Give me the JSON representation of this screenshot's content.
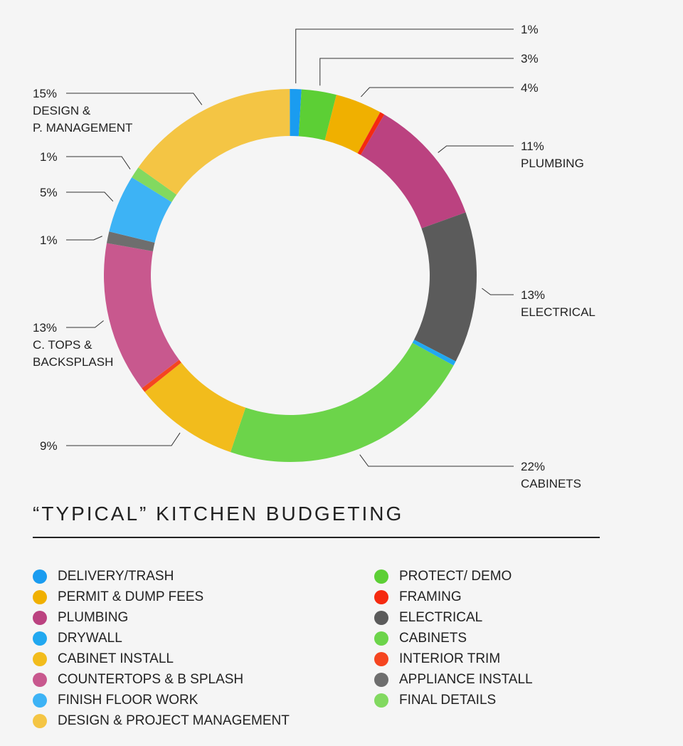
{
  "title": "“TYPICAL” KITCHEN BUDGETING",
  "chart_data": {
    "type": "pie",
    "donut": true,
    "slices": [
      {
        "name": "DELIVERY/TRASH",
        "value": 1,
        "color": "#1a9cf0"
      },
      {
        "name": "PROTECT/ DEMO",
        "value": 3,
        "color": "#5ccf35"
      },
      {
        "name": "PERMIT & DUMP FEES",
        "value": 4,
        "color": "#f0b000"
      },
      {
        "name": "FRAMING",
        "value": 0.4,
        "color": "#f52a10"
      },
      {
        "name": "PLUMBING",
        "value": 11,
        "color": "#bb4280"
      },
      {
        "name": "ELECTRICAL",
        "value": 13,
        "color": "#5b5b5b"
      },
      {
        "name": "DRYWALL",
        "value": 0.4,
        "color": "#21a8f0"
      },
      {
        "name": "CABINETS",
        "value": 22,
        "color": "#6cd44a"
      },
      {
        "name": "CABINET INSTALL",
        "value": 9,
        "color": "#f2bc1c"
      },
      {
        "name": "INTERIOR TRIM",
        "value": 0.4,
        "color": "#f54520"
      },
      {
        "name": "COUNTERTOPS & B SPLASH",
        "value": 13,
        "color": "#c8588e"
      },
      {
        "name": "APPLIANCE INSTALL",
        "value": 1,
        "color": "#6e6e6e"
      },
      {
        "name": "FINISH FLOOR WORK",
        "value": 5,
        "color": "#3db3f5"
      },
      {
        "name": "FINAL DETAILS",
        "value": 1,
        "color": "#82d960"
      },
      {
        "name": "DESIGN & PROJECT MANAGEMENT",
        "value": 15,
        "color": "#f4c544"
      }
    ],
    "labels": [
      {
        "slice": 0,
        "lines": [
          "1%"
        ]
      },
      {
        "slice": 1,
        "lines": [
          "3%"
        ]
      },
      {
        "slice": 2,
        "lines": [
          "4%"
        ]
      },
      {
        "slice": 4,
        "lines": [
          "11%",
          "PLUMBING"
        ]
      },
      {
        "slice": 5,
        "lines": [
          "13%",
          "ELECTRICAL"
        ]
      },
      {
        "slice": 7,
        "lines": [
          "22%",
          "CABINETS"
        ]
      },
      {
        "slice": 8,
        "lines": [
          "9%"
        ]
      },
      {
        "slice": 10,
        "lines": [
          "13%",
          "C. TOPS &",
          "BACKSPLASH"
        ]
      },
      {
        "slice": 11,
        "lines": [
          "1%"
        ]
      },
      {
        "slice": 12,
        "lines": [
          "5%"
        ]
      },
      {
        "slice": 13,
        "lines": [
          "1%"
        ]
      },
      {
        "slice": 14,
        "lines": [
          "15%",
          "DESIGN &",
          "P. MANAGEMENT"
        ]
      }
    ],
    "legend_left": [
      {
        "label": "DELIVERY/TRASH",
        "color": "#1a9cf0"
      },
      {
        "label": "PERMIT & DUMP FEES",
        "color": "#f0b000"
      },
      {
        "label": "PLUMBING",
        "color": "#bb4280"
      },
      {
        "label": "DRYWALL",
        "color": "#21a8f0"
      },
      {
        "label": "CABINET INSTALL",
        "color": "#f2bc1c"
      },
      {
        "label": "COUNTERTOPS & B SPLASH",
        "color": "#c8588e"
      },
      {
        "label": "FINISH FLOOR WORK",
        "color": "#3db3f5"
      },
      {
        "label": "DESIGN & PROJECT MANAGEMENT",
        "color": "#f4c544"
      }
    ],
    "legend_right": [
      {
        "label": "PROTECT/ DEMO",
        "color": "#5ccf35"
      },
      {
        "label": "FRAMING",
        "color": "#f52a10"
      },
      {
        "label": "ELECTRICAL",
        "color": "#5b5b5b"
      },
      {
        "label": "CABINETS",
        "color": "#6cd44a"
      },
      {
        "label": "INTERIOR TRIM",
        "color": "#f54520"
      },
      {
        "label": "APPLIANCE INSTALL",
        "color": "#6e6e6e"
      },
      {
        "label": "FINAL DETAILS",
        "color": "#82d960"
      }
    ]
  }
}
